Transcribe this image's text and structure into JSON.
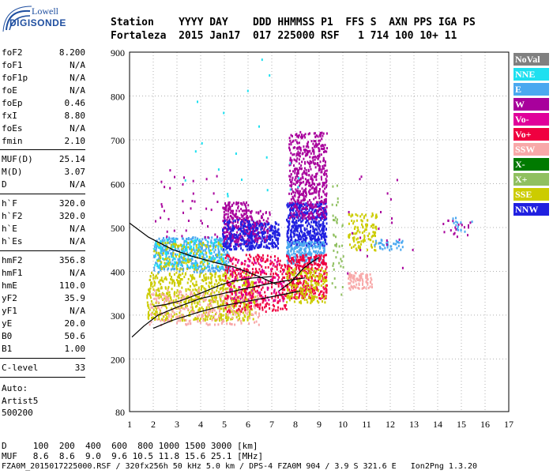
{
  "logo": {
    "top": "Lowell",
    "main": "DIGISONDE"
  },
  "header": {
    "row1": "Station    YYYY DAY    DDD HHMMSS P1  FFS S  AXN PPS IGA PS",
    "row2": "Fortaleza  2015 Jan17  017 225000 RSF   1 714 100 10+ 11"
  },
  "params": [
    {
      "label": "foF2",
      "value": "8.200"
    },
    {
      "label": "foF1",
      "value": "N/A"
    },
    {
      "label": "foF1p",
      "value": "N/A"
    },
    {
      "label": "foE",
      "value": "N/A"
    },
    {
      "label": "foEp",
      "value": "0.46"
    },
    {
      "label": "fxI",
      "value": "8.80"
    },
    {
      "label": "foEs",
      "value": "N/A"
    },
    {
      "label": "fmin",
      "value": "2.10"
    },
    {
      "label": "MUF(D)",
      "value": "25.14"
    },
    {
      "label": "M(D)",
      "value": "3.07"
    },
    {
      "label": "D",
      "value": "N/A"
    },
    {
      "label": "h`F",
      "value": "320.0"
    },
    {
      "label": "h`F2",
      "value": "320.0"
    },
    {
      "label": "h`E",
      "value": "N/A"
    },
    {
      "label": "h`Es",
      "value": "N/A"
    },
    {
      "label": "hmF2",
      "value": "356.8"
    },
    {
      "label": "hmF1",
      "value": "N/A"
    },
    {
      "label": "hmE",
      "value": "110.0"
    },
    {
      "label": "yF2",
      "value": "35.9"
    },
    {
      "label": "yF1",
      "value": "N/A"
    },
    {
      "label": "yE",
      "value": "20.0"
    },
    {
      "label": "B0",
      "value": "50.6"
    },
    {
      "label": "B1",
      "value": "1.00"
    },
    {
      "label": "C-level",
      "value": "33"
    }
  ],
  "auto": {
    "l1": "Auto:",
    "l2": "Artist5",
    "l3": "500200"
  },
  "footer": {
    "row1": "D     100  200  400  600  800 1000 1500 3000 [km]",
    "row2": "MUF   8.6  8.6  9.0  9.6 10.5 11.8 15.6 25.1 [MHz]",
    "row3": "FZA0M_2015017225000.RSF / 320fx256h 50 kHz 5.0 km / DPS-4 FZA0M 904 / 3.9 S 321.6 E   Ion2Png 1.3.20"
  },
  "legend": [
    {
      "label": "NoVal",
      "color": "#808080"
    },
    {
      "label": "NNE",
      "color": "#1ee0f0"
    },
    {
      "label": "E",
      "color": "#4aa8f0"
    },
    {
      "label": "W",
      "color": "#a8009c"
    },
    {
      "label": "Vo-",
      "color": "#e0009a"
    },
    {
      "label": "Vo+",
      "color": "#f00040"
    },
    {
      "label": "SSW",
      "color": "#f8a8a8"
    },
    {
      "label": "X-",
      "color": "#007a00"
    },
    {
      "label": "X+",
      "color": "#90c060"
    },
    {
      "label": "SSE",
      "color": "#cccc00"
    },
    {
      "label": "NNW",
      "color": "#2020e0"
    }
  ],
  "chart_data": {
    "type": "scatter",
    "xlim": [
      1,
      17
    ],
    "ylim": [
      80,
      900
    ],
    "x_ticks": [
      "1",
      "2",
      "3",
      "4",
      "5",
      "6",
      "7",
      "8",
      "9",
      "10",
      "11",
      "12",
      "13",
      "14",
      "15",
      "16",
      "17"
    ],
    "y_ticks": [
      "900",
      "800",
      "700",
      "600",
      "500",
      "400",
      "300",
      "200",
      "80"
    ],
    "grid": true,
    "legend_placement": "right",
    "clusters": [
      {
        "series": "SSE",
        "x0": 1.7,
        "x1": 6.3,
        "y0": 290,
        "y1": 400,
        "n": 700
      },
      {
        "series": "SSW",
        "x0": 1.8,
        "x1": 6.5,
        "y0": 280,
        "y1": 360,
        "n": 260
      },
      {
        "series": "E",
        "x0": 2.0,
        "x1": 5.2,
        "y0": 400,
        "y1": 480,
        "n": 450
      },
      {
        "series": "NNE",
        "x0": 2.0,
        "x1": 5.0,
        "y0": 410,
        "y1": 475,
        "n": 160
      },
      {
        "series": "SSE",
        "x0": 2.0,
        "x1": 5.0,
        "y0": 405,
        "y1": 470,
        "n": 120
      },
      {
        "series": "W",
        "x0": 4.9,
        "x1": 6.0,
        "y0": 460,
        "y1": 560,
        "n": 260
      },
      {
        "series": "NNW",
        "x0": 4.9,
        "x1": 6.2,
        "y0": 450,
        "y1": 520,
        "n": 180
      },
      {
        "series": "NNW",
        "x0": 6.0,
        "x1": 7.3,
        "y0": 455,
        "y1": 515,
        "n": 220
      },
      {
        "series": "W",
        "x0": 6.0,
        "x1": 6.9,
        "y0": 470,
        "y1": 540,
        "n": 70
      },
      {
        "series": "Vo+",
        "x0": 5.0,
        "x1": 7.6,
        "y0": 310,
        "y1": 440,
        "n": 320
      },
      {
        "series": "Vo-",
        "x0": 5.2,
        "x1": 7.5,
        "y0": 330,
        "y1": 430,
        "n": 120
      },
      {
        "series": "NNW",
        "x0": 7.6,
        "x1": 9.3,
        "y0": 460,
        "y1": 560,
        "n": 500
      },
      {
        "series": "W",
        "x0": 7.7,
        "x1": 9.3,
        "y0": 520,
        "y1": 720,
        "n": 550
      },
      {
        "series": "E",
        "x0": 7.6,
        "x1": 9.2,
        "y0": 420,
        "y1": 470,
        "n": 220
      },
      {
        "series": "Vo+",
        "x0": 7.6,
        "x1": 9.3,
        "y0": 340,
        "y1": 440,
        "n": 360
      },
      {
        "series": "SSE",
        "x0": 7.6,
        "x1": 9.3,
        "y0": 330,
        "y1": 410,
        "n": 180
      },
      {
        "series": "SSE",
        "x0": 10.2,
        "x1": 11.4,
        "y0": 450,
        "y1": 540,
        "n": 120
      },
      {
        "series": "SSW",
        "x0": 10.2,
        "x1": 11.2,
        "y0": 360,
        "y1": 400,
        "n": 90
      },
      {
        "series": "E",
        "x0": 11.3,
        "x1": 12.5,
        "y0": 450,
        "y1": 475,
        "n": 40
      },
      {
        "series": "W",
        "x0": 14.2,
        "x1": 15.4,
        "y0": 480,
        "y1": 520,
        "n": 20
      },
      {
        "series": "E",
        "x0": 14.6,
        "x1": 15.5,
        "y0": 490,
        "y1": 525,
        "n": 14
      },
      {
        "series": "X+",
        "x0": 9.5,
        "x1": 10.0,
        "y0": 330,
        "y1": 600,
        "n": 40
      },
      {
        "series": "W",
        "x0": 2.0,
        "x1": 5.0,
        "y0": 480,
        "y1": 650,
        "n": 40
      },
      {
        "series": "NNE",
        "x0": 3.0,
        "x1": 8.3,
        "y0": 560,
        "y1": 900,
        "n": 20
      },
      {
        "series": "W",
        "x0": 10.0,
        "x1": 13.0,
        "y0": 380,
        "y1": 620,
        "n": 20
      }
    ],
    "traces": [
      {
        "name": "trace-1",
        "points": [
          [
            1.1,
            250
          ],
          [
            1.6,
            275
          ],
          [
            2.2,
            300
          ],
          [
            3.0,
            318
          ],
          [
            4.0,
            338
          ],
          [
            5.0,
            350
          ],
          [
            6.0,
            362
          ],
          [
            7.0,
            373
          ],
          [
            8.0,
            382
          ],
          [
            8.4,
            385
          ]
        ]
      },
      {
        "name": "trace-2",
        "points": [
          [
            2.0,
            270
          ],
          [
            2.8,
            288
          ],
          [
            3.8,
            305
          ],
          [
            4.8,
            320
          ],
          [
            5.8,
            330
          ],
          [
            7.0,
            342
          ],
          [
            8.2,
            355
          ]
        ]
      },
      {
        "name": "trace-3",
        "points": [
          [
            2.0,
            320
          ],
          [
            2.5,
            324
          ],
          [
            3.1,
            332
          ],
          [
            4.0,
            350
          ],
          [
            4.8,
            368
          ],
          [
            5.4,
            378
          ],
          [
            6.2,
            385
          ],
          [
            7.0,
            388
          ]
        ]
      },
      {
        "name": "trace-4",
        "points": [
          [
            1.0,
            510
          ],
          [
            1.8,
            478
          ],
          [
            2.8,
            450
          ],
          [
            3.6,
            435
          ],
          [
            4.6,
            420
          ],
          [
            5.4,
            410
          ],
          [
            6.0,
            398
          ],
          [
            6.6,
            385
          ],
          [
            7.2,
            370
          ]
        ]
      },
      {
        "name": "trace-5",
        "points": [
          [
            7.3,
            355
          ],
          [
            7.8,
            375
          ],
          [
            8.3,
            405
          ],
          [
            8.6,
            418
          ],
          [
            9.0,
            432
          ]
        ]
      }
    ]
  }
}
